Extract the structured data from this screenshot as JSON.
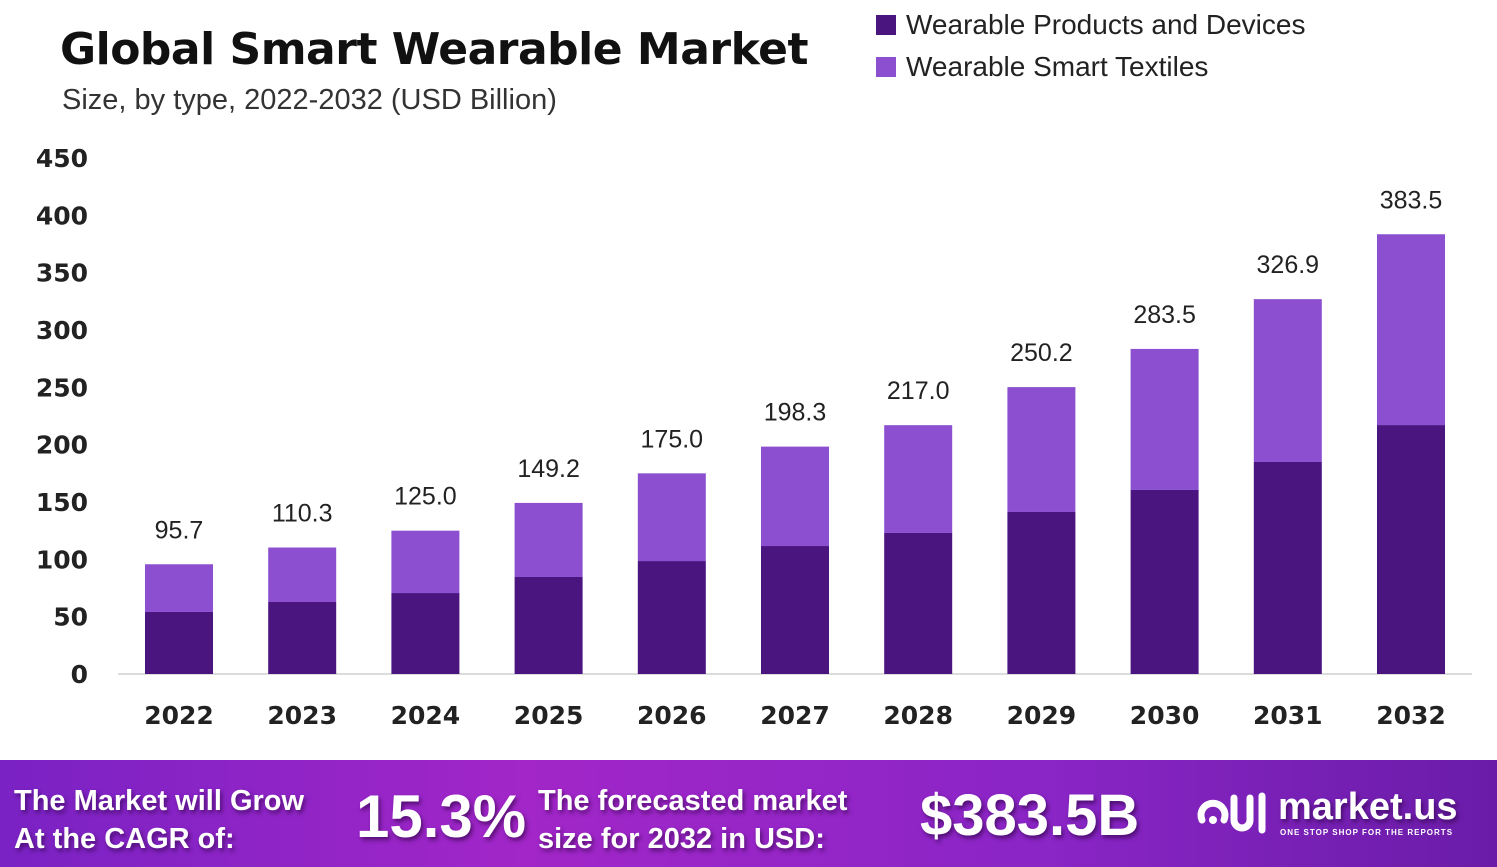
{
  "header": {
    "title": "Global Smart Wearable Market",
    "subtitle": "Size, by type, 2022-2032 (USD Billion)"
  },
  "colors": {
    "dark": "#4b1580",
    "light": "#8b4fd0"
  },
  "chart_data": {
    "type": "bar",
    "stacked": true,
    "title": "Global Smart Wearable Market",
    "subtitle": "Size, by type, 2022-2032 (USD Billion)",
    "xlabel": "",
    "ylabel": "USD Billion",
    "ylim": [
      0,
      450
    ],
    "yticks": [
      "0",
      "50",
      "100",
      "150",
      "200",
      "250",
      "300",
      "350",
      "400",
      "450"
    ],
    "legend_position": "top-right",
    "categories": [
      "2022",
      "2023",
      "2024",
      "2025",
      "2026",
      "2027",
      "2028",
      "2029",
      "2030",
      "2031",
      "2032"
    ],
    "series": [
      {
        "name": "Wearable Products and Devices",
        "values": [
          54.1,
          62.8,
          70.6,
          84.6,
          98.5,
          111.6,
          123.0,
          141.3,
          160.5,
          184.9,
          217.1
        ]
      },
      {
        "name": "Wearable Smart Textiles",
        "values": [
          41.6,
          47.5,
          54.4,
          64.6,
          76.5,
          86.7,
          94.0,
          108.9,
          123.0,
          142.0,
          166.4
        ]
      }
    ],
    "totals": [
      "95.7",
      "110.3",
      "125.0",
      "149.2",
      "175.0",
      "198.3",
      "217.0",
      "250.2",
      "283.5",
      "326.9",
      "383.5"
    ]
  },
  "footer": {
    "cagr_label_line1": "The Market will Grow",
    "cagr_label_line2": "At the CAGR of:",
    "cagr_value": "15.3%",
    "forecast_label_line1": "The forecasted market",
    "forecast_label_line2": "size for 2032 in USD:",
    "forecast_value": "$383.5B",
    "brand": "market.us",
    "tagline": "ONE STOP SHOP FOR THE REPORTS"
  }
}
